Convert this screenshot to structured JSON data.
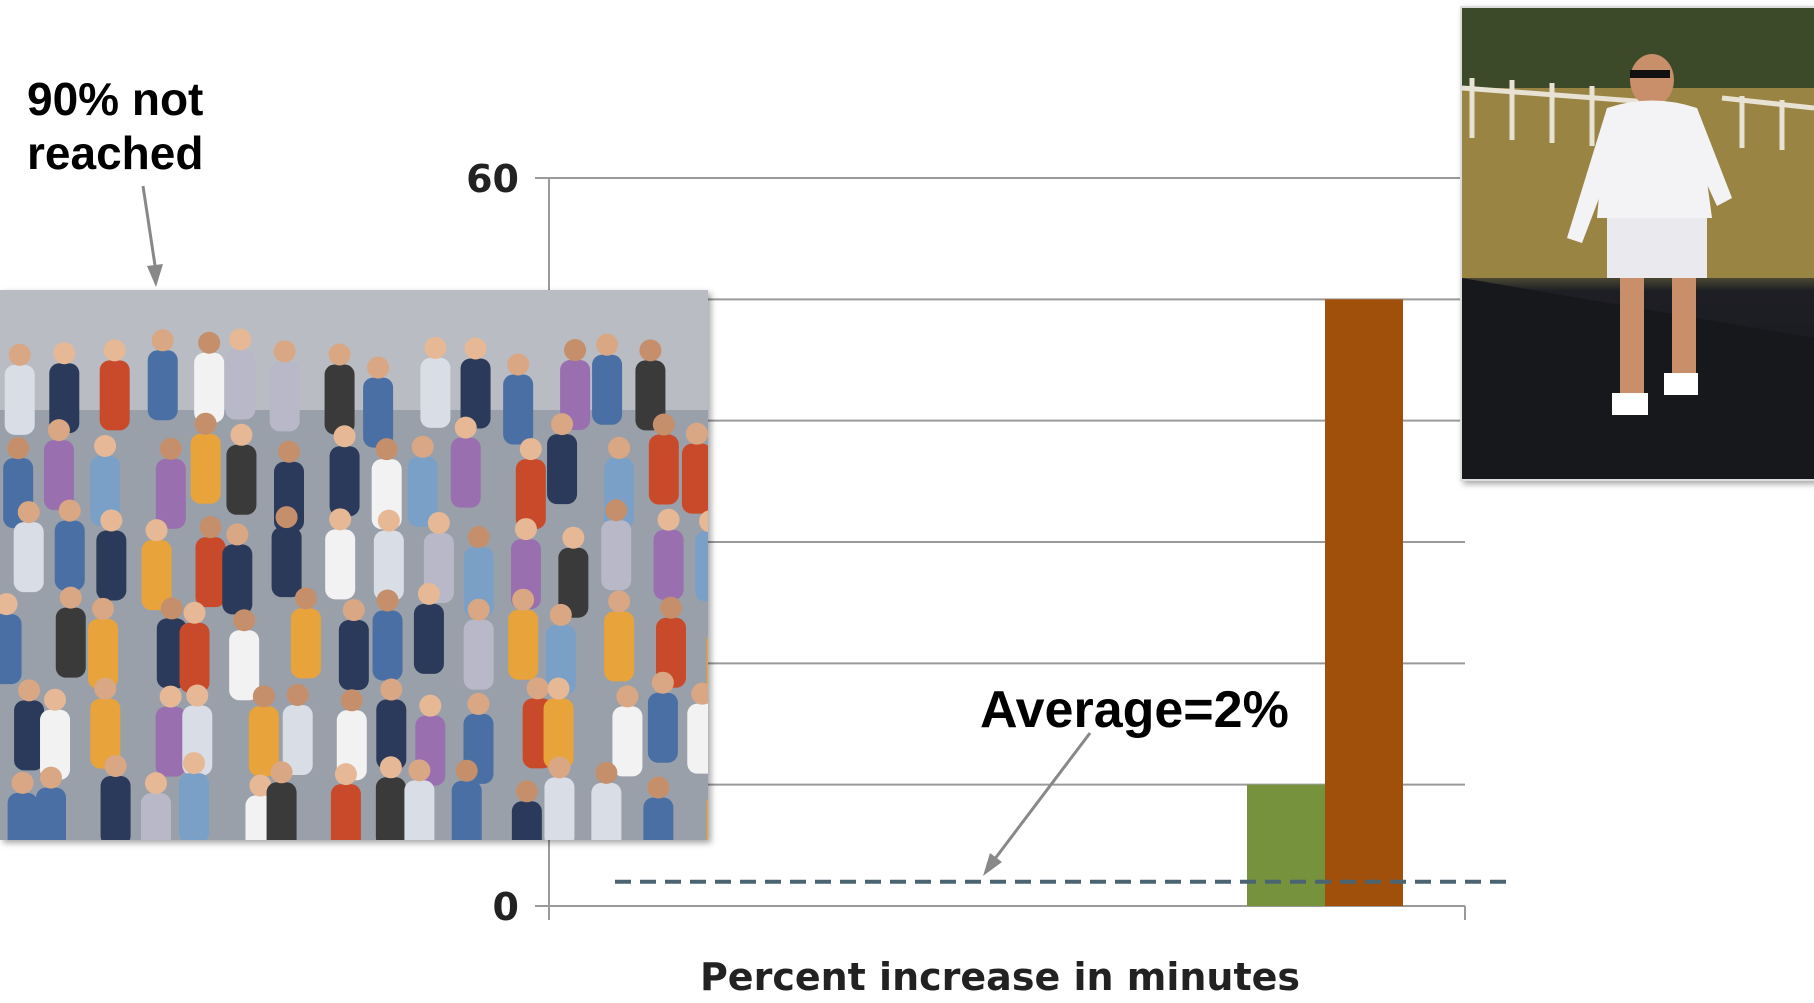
{
  "annotations": {
    "callout_text": "90% not reached",
    "average_text": "Average=2%"
  },
  "photos": {
    "left": "crowd-of-pedestrians-photo",
    "right": "woman-walking-outdoors-photo"
  },
  "chart_data": {
    "type": "bar",
    "xlabel": "Percent increase in minutes",
    "ylabel": "",
    "ylim": [
      0,
      60
    ],
    "yticks": [
      0,
      10,
      20,
      30,
      40,
      50,
      60
    ],
    "yticks_visible_labels": [
      "0",
      "60"
    ],
    "grid": true,
    "series": [
      {
        "values": [
          10
        ],
        "color": "#76923c"
      },
      {
        "values": [
          50
        ],
        "color": "#a0500a"
      }
    ],
    "reference_line": {
      "value": 2,
      "style": "dashed",
      "color": "#4a6472"
    }
  }
}
